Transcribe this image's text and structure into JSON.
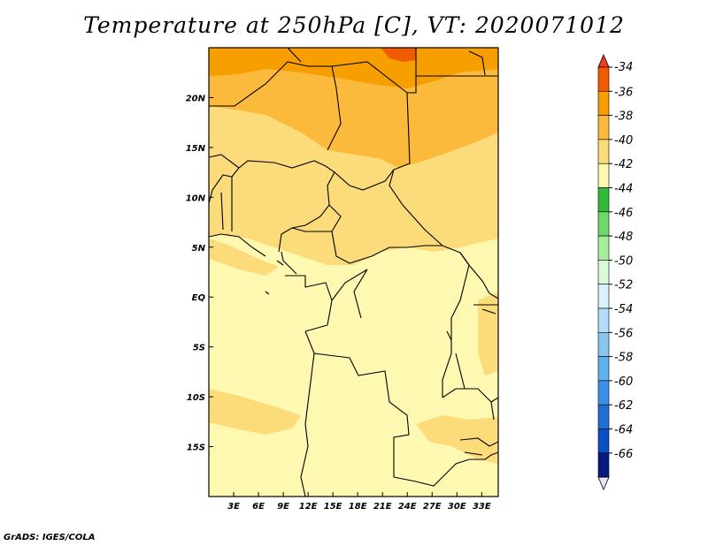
{
  "title": "Temperature at 250hPa [C], VT: 2020071012",
  "credit": "GrADS: IGES/COLA",
  "map": {
    "lat_labels": [
      "20N",
      "15N",
      "10N",
      "5N",
      "EQ",
      "5S",
      "10S",
      "15S"
    ],
    "lat_values": [
      20,
      15,
      10,
      5,
      0,
      -5,
      -10,
      -15
    ],
    "lon_labels": [
      "3E",
      "6E",
      "9E",
      "12E",
      "15E",
      "18E",
      "21E",
      "24E",
      "27E",
      "30E",
      "33E"
    ],
    "lon_values": [
      3,
      6,
      9,
      12,
      15,
      18,
      21,
      24,
      27,
      30,
      33
    ],
    "lon_range": [
      0,
      35
    ],
    "lat_range": [
      -20,
      25
    ]
  },
  "colorbar": {
    "labels": [
      "-34",
      "-36",
      "-38",
      "-40",
      "-42",
      "-44",
      "-46",
      "-48",
      "-50",
      "-52",
      "-54",
      "-56",
      "-58",
      "-60",
      "-62",
      "-64",
      "-66"
    ],
    "colors": [
      "#f05a00",
      "#f79e00",
      "#fbba3b",
      "#fcdc7a",
      "#fef8b0",
      "#33b83a",
      "#6fd86a",
      "#a6ee9a",
      "#d9fbd6",
      "#d8f1fb",
      "#b0dcf5",
      "#8ac6f0",
      "#60b0eb",
      "#3c91e6",
      "#1f6fd6",
      "#0a4fc2",
      "#061a80"
    ],
    "over_color": "#f03c1e",
    "under_color": "#e5e5f5"
  }
}
